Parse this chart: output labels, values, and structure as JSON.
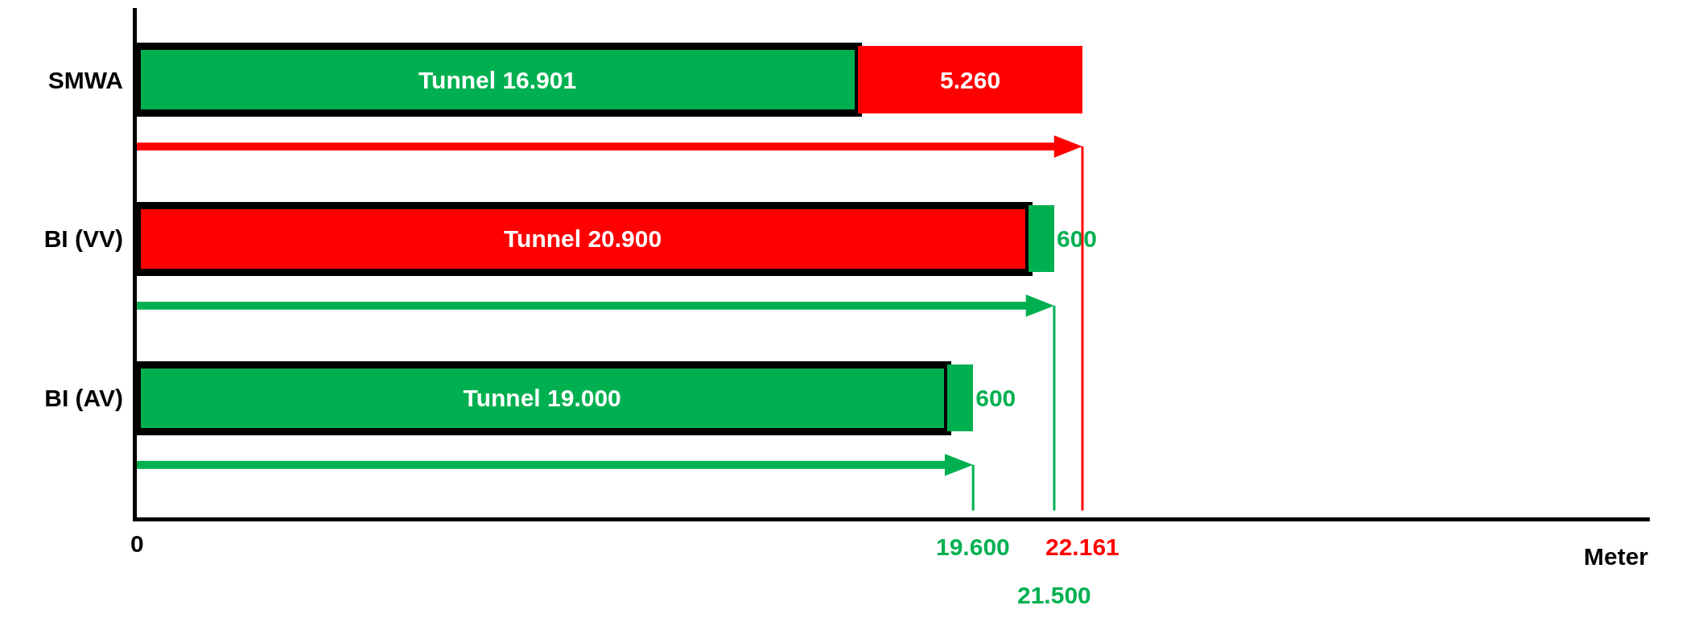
{
  "chart_data": {
    "type": "bar",
    "orientation": "horizontal",
    "stacked": true,
    "categories": [
      "SMWA",
      "BI (VV)",
      "BI (AV)"
    ],
    "series": [
      {
        "colors": [
          "#00b050",
          "#ff0000",
          "#00b050"
        ],
        "values": [
          16901,
          20900,
          19000
        ],
        "value_labels": [
          "Tunnel 16.901",
          "Tunnel 20.900",
          "Tunnel 19.000"
        ]
      },
      {
        "colors": [
          "#ff0000",
          "#00b050",
          "#00b050"
        ],
        "values": [
          5260,
          600,
          600
        ],
        "value_labels": [
          "5.260",
          "600",
          "600"
        ]
      }
    ],
    "annotations": [
      "0",
      "22.161",
      "21.500",
      "19.600",
      "Meter"
    ],
    "legend": false
  }
}
